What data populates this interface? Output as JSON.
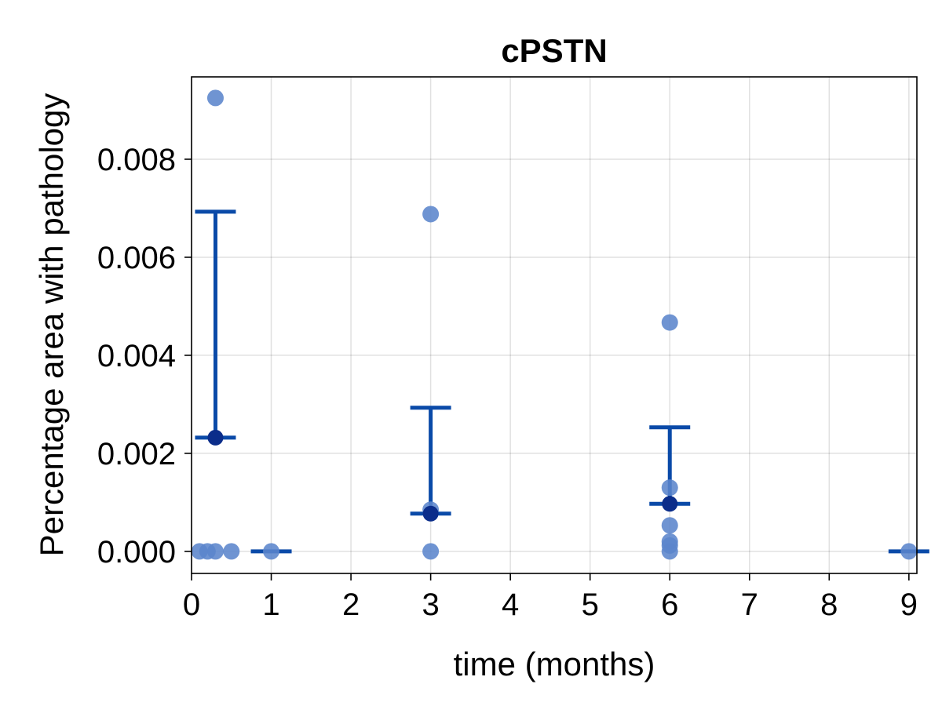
{
  "chart_data": {
    "type": "scatter",
    "title": "cPSTN",
    "xlabel": "time (months)",
    "ylabel": "Percentage area with pathology",
    "xlim": [
      0,
      9.1
    ],
    "ylim": [
      -0.00045,
      0.00968
    ],
    "xticks": [
      0,
      1,
      2,
      3,
      4,
      5,
      6,
      7,
      8,
      9
    ],
    "xtick_labels": [
      "0",
      "1",
      "2",
      "3",
      "4",
      "5",
      "6",
      "7",
      "8",
      "9"
    ],
    "yticks": [
      0.0,
      0.002,
      0.004,
      0.006,
      0.008
    ],
    "ytick_labels": [
      "0.000",
      "0.002",
      "0.004",
      "0.006",
      "0.008"
    ],
    "grid": true,
    "colors": {
      "points": "#5b85cc",
      "points_opacity": 0.88,
      "mean_marker": "#0b2d8a",
      "error_bar": "#0a4aa8"
    },
    "points": [
      {
        "x": 0.1,
        "y": 0.0
      },
      {
        "x": 0.2,
        "y": 0.0
      },
      {
        "x": 0.3,
        "y": 0.0
      },
      {
        "x": 0.5,
        "y": 0.0
      },
      {
        "x": 0.3,
        "y": 0.00925
      },
      {
        "x": 1.0,
        "y": 0.0
      },
      {
        "x": 3.0,
        "y": 0.0
      },
      {
        "x": 3.0,
        "y": 0.00085
      },
      {
        "x": 3.0,
        "y": 0.00688
      },
      {
        "x": 6.0,
        "y": 0.0
      },
      {
        "x": 6.0,
        "y": 0.00012
      },
      {
        "x": 6.0,
        "y": 0.0002
      },
      {
        "x": 6.0,
        "y": 0.00053
      },
      {
        "x": 6.0,
        "y": 0.0013
      },
      {
        "x": 6.0,
        "y": 0.00467
      },
      {
        "x": 9.0,
        "y": 0.0
      }
    ],
    "summary": [
      {
        "x": 0.3,
        "mean": 0.00232,
        "upper": 0.00693
      },
      {
        "x": 1.0,
        "mean": 0.0,
        "upper": 0.0
      },
      {
        "x": 3.0,
        "mean": 0.00077,
        "upper": 0.00293
      },
      {
        "x": 6.0,
        "mean": 0.00097,
        "upper": 0.00253
      },
      {
        "x": 9.0,
        "mean": 0.0,
        "upper": 0.0
      }
    ]
  }
}
